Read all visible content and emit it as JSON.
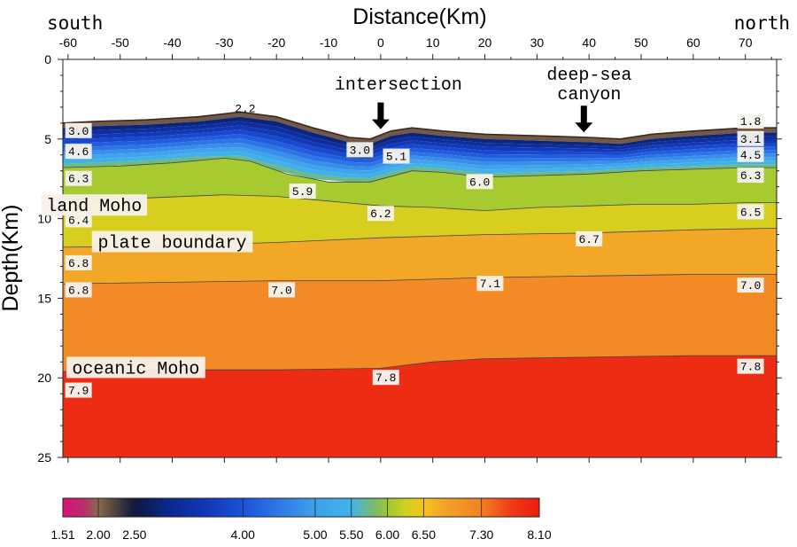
{
  "chart_data": {
    "type": "heatmap",
    "title": "",
    "xlabel": "Distance(Km)",
    "ylabel": "Depth(Km)",
    "xlim": [
      -61,
      76
    ],
    "ylim": [
      25,
      0
    ],
    "x_ticks": [
      -60,
      -50,
      -40,
      -30,
      -20,
      -10,
      0,
      10,
      20,
      30,
      40,
      50,
      60,
      70
    ],
    "y_ticks": [
      0,
      5,
      10,
      15,
      20,
      25
    ],
    "side_labels": {
      "left": "south",
      "right": "north"
    },
    "annotations": [
      {
        "text": "intersection",
        "x": 0,
        "arrow_to_depth": 4.6
      },
      {
        "text": "deep-sea",
        "x": 39
      },
      {
        "text": "canyon",
        "x": 39,
        "arrow_to_depth": 4.8
      }
    ],
    "interface_labels": [
      {
        "text": "land Moho",
        "x": -55,
        "depth": 9.2
      },
      {
        "text": "plate boundary",
        "x": -40,
        "depth": 11.5
      },
      {
        "text": "oceanic Moho",
        "x": -47,
        "depth": 19.4
      }
    ],
    "velocity_labels": [
      {
        "text": "2.2",
        "x": -26,
        "depth": 3.1
      },
      {
        "text": "3.0",
        "x": -58,
        "depth": 4.5
      },
      {
        "text": "1.8",
        "x": 71,
        "depth": 3.9
      },
      {
        "text": "3.0",
        "x": -4,
        "depth": 5.7
      },
      {
        "text": "5.1",
        "x": 3,
        "depth": 6.1
      },
      {
        "text": "3.1",
        "x": 71,
        "depth": 5.0
      },
      {
        "text": "4.6",
        "x": -58,
        "depth": 5.8
      },
      {
        "text": "4.5",
        "x": 71,
        "depth": 6.0
      },
      {
        "text": "6.3",
        "x": -58,
        "depth": 7.5
      },
      {
        "text": "6.3",
        "x": 71,
        "depth": 7.3
      },
      {
        "text": "5.9",
        "x": -15,
        "depth": 8.3
      },
      {
        "text": "6.0",
        "x": 19,
        "depth": 7.7
      },
      {
        "text": "6.4",
        "x": -58,
        "depth": 10.1
      },
      {
        "text": "6.2",
        "x": 0,
        "depth": 9.7
      },
      {
        "text": "6.5",
        "x": 71,
        "depth": 9.6
      },
      {
        "text": "6.7",
        "x": 40,
        "depth": 11.3
      },
      {
        "text": "6.8",
        "x": -58,
        "depth": 12.8
      },
      {
        "text": "6.8",
        "x": -58,
        "depth": 14.5
      },
      {
        "text": "7.0",
        "x": -19,
        "depth": 14.5
      },
      {
        "text": "7.1",
        "x": 21,
        "depth": 14.1
      },
      {
        "text": "7.0",
        "x": 71,
        "depth": 14.2
      },
      {
        "text": "7.8",
        "x": 71,
        "depth": 19.3
      },
      {
        "text": "7.8",
        "x": 1,
        "depth": 20.0
      },
      {
        "text": "7.9",
        "x": -58,
        "depth": 20.8
      }
    ],
    "interfaces": [
      {
        "name": "seafloor",
        "points": [
          [
            -61,
            4.0
          ],
          [
            -55,
            3.9
          ],
          [
            -45,
            3.8
          ],
          [
            -35,
            3.6
          ],
          [
            -27,
            3.3
          ],
          [
            -20,
            3.6
          ],
          [
            -13,
            4.3
          ],
          [
            -6,
            4.9
          ],
          [
            -2,
            5.0
          ],
          [
            2,
            4.5
          ],
          [
            6,
            4.3
          ],
          [
            12,
            4.5
          ],
          [
            20,
            4.7
          ],
          [
            30,
            4.8
          ],
          [
            40,
            4.9
          ],
          [
            46,
            5.0
          ],
          [
            52,
            4.7
          ],
          [
            60,
            4.5
          ],
          [
            70,
            4.3
          ],
          [
            76,
            4.3
          ]
        ]
      },
      {
        "name": "6.0 contour",
        "points": [
          [
            -61,
            6.8
          ],
          [
            -50,
            6.7
          ],
          [
            -40,
            6.5
          ],
          [
            -30,
            6.2
          ],
          [
            -25,
            6.4
          ],
          [
            -18,
            7.2
          ],
          [
            -10,
            7.7
          ],
          [
            -2,
            7.7
          ],
          [
            6,
            7.0
          ],
          [
            12,
            7.1
          ],
          [
            20,
            7.4
          ],
          [
            30,
            7.3
          ],
          [
            40,
            7.2
          ],
          [
            50,
            7.0
          ],
          [
            60,
            6.9
          ],
          [
            70,
            6.8
          ],
          [
            76,
            6.8
          ]
        ]
      },
      {
        "name": "land Moho",
        "points": [
          [
            -61,
            8.8
          ],
          [
            -45,
            8.7
          ],
          [
            -30,
            8.5
          ],
          [
            -20,
            8.6
          ],
          [
            -10,
            8.9
          ],
          [
            0,
            9.2
          ],
          [
            10,
            9.3
          ],
          [
            20,
            9.5
          ],
          [
            30,
            9.3
          ],
          [
            40,
            9.2
          ],
          [
            50,
            9.1
          ],
          [
            60,
            9.1
          ],
          [
            70,
            9.0
          ],
          [
            76,
            9.0
          ]
        ]
      },
      {
        "name": "plate boundary",
        "points": [
          [
            -61,
            11.8
          ],
          [
            -40,
            11.7
          ],
          [
            -20,
            11.5
          ],
          [
            0,
            11.2
          ],
          [
            20,
            11.0
          ],
          [
            40,
            10.9
          ],
          [
            60,
            10.7
          ],
          [
            76,
            10.6
          ]
        ]
      },
      {
        "name": "6.9 contour",
        "points": [
          [
            -61,
            14.1
          ],
          [
            -40,
            14.0
          ],
          [
            -20,
            13.9
          ],
          [
            0,
            13.9
          ],
          [
            20,
            13.7
          ],
          [
            40,
            13.6
          ],
          [
            60,
            13.5
          ],
          [
            76,
            13.5
          ]
        ]
      },
      {
        "name": "oceanic Moho",
        "points": [
          [
            -61,
            19.6
          ],
          [
            -40,
            19.5
          ],
          [
            -20,
            19.5
          ],
          [
            0,
            19.4
          ],
          [
            10,
            19.0
          ],
          [
            20,
            18.8
          ],
          [
            40,
            18.7
          ],
          [
            60,
            18.6
          ],
          [
            76,
            18.6
          ]
        ]
      }
    ],
    "colorbar": {
      "tick_labels": [
        "1.51",
        "2.00",
        "2.50",
        "4.00",
        "5.00",
        "5.50",
        "6.00",
        "6.50",
        "7.30",
        "8.10"
      ],
      "stops": [
        {
          "v": 1.51,
          "c": "#d9107a"
        },
        {
          "v": 1.8,
          "c": "#b8306a"
        },
        {
          "v": 2.0,
          "c": "#8a6a50"
        },
        {
          "v": 2.2,
          "c": "#5a4840"
        },
        {
          "v": 2.5,
          "c": "#101840"
        },
        {
          "v": 3.0,
          "c": "#0a2890"
        },
        {
          "v": 3.5,
          "c": "#1238b8"
        },
        {
          "v": 4.0,
          "c": "#1b53d8"
        },
        {
          "v": 4.5,
          "c": "#2f78e6"
        },
        {
          "v": 5.0,
          "c": "#3fa0ec"
        },
        {
          "v": 5.5,
          "c": "#40b4e8"
        },
        {
          "v": 5.8,
          "c": "#7ab870"
        },
        {
          "v": 6.0,
          "c": "#9cc834"
        },
        {
          "v": 6.25,
          "c": "#d0d020"
        },
        {
          "v": 6.5,
          "c": "#f4c41c"
        },
        {
          "v": 6.8,
          "c": "#f2a228"
        },
        {
          "v": 7.3,
          "c": "#f48024"
        },
        {
          "v": 7.7,
          "c": "#f03c18"
        },
        {
          "v": 8.1,
          "c": "#ea1c10"
        }
      ]
    }
  }
}
